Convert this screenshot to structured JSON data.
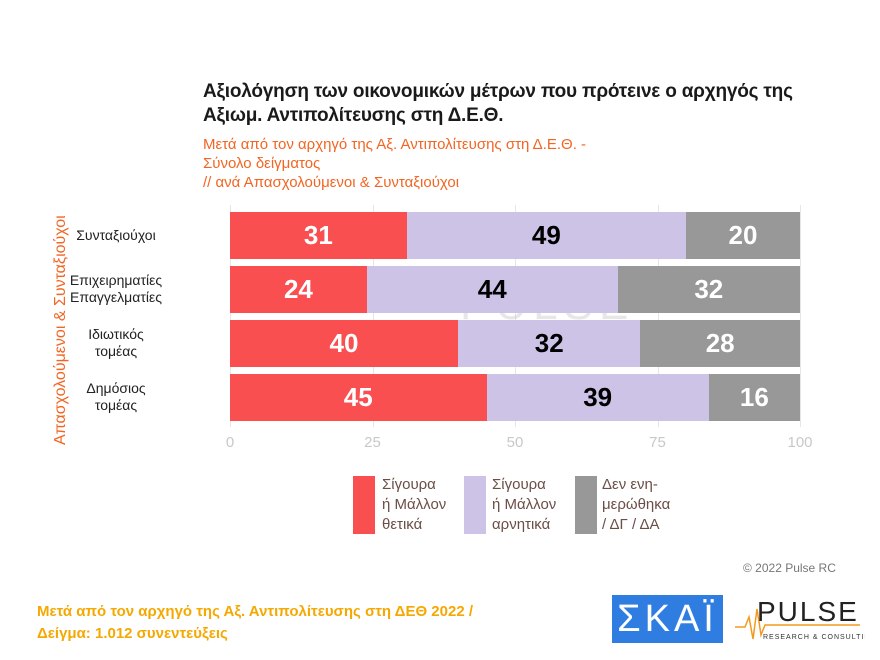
{
  "chart_data": {
    "type": "bar",
    "orientation": "horizontal",
    "stacked": true,
    "title": "Αξιολόγηση των οικονομικών μέτρων που πρότεινε ο αρχηγός της Αξιωμ. Αντιπολίτευσης στη Δ.Ε.Θ.",
    "subtitle": "Μετά από τον αρχηγό της Αξ. Αντιπολίτευσης στη Δ.Ε.Θ. -\nΣύνολο δείγματος\n // ανά Απασχολούμενοι & Συνταξιούχοι",
    "ylabel": "Απασχολούμενοι & Συνταξιούχοι",
    "xlabel": "",
    "categories": [
      "Συνταξιούχοι",
      "Επιχειρηματίες\nΕπαγγελματίες",
      "Ιδιωτικός\nτομέας",
      "Δημόσιος\nτομέας"
    ],
    "series": [
      {
        "name": "Σίγουρα\nή Μάλλον\nθετικά",
        "color": "#f94f51",
        "label_color": "#ffffff",
        "values": [
          31,
          24,
          40,
          45
        ]
      },
      {
        "name": "Σίγουρα\nή Μάλλον\nαρνητικά",
        "color": "#cdc3e7",
        "label_color": "#000000",
        "values": [
          49,
          44,
          32,
          39
        ]
      },
      {
        "name": "Δεν ενη-\nμερώθηκα\n/ ΔΓ / ΔΑ",
        "color": "#989898",
        "label_color": "#ffffff",
        "values": [
          20,
          32,
          28,
          16
        ]
      }
    ],
    "xlim": [
      0,
      100
    ],
    "xticks": [
      "0",
      "25",
      "50",
      "75",
      "100"
    ],
    "grid": true,
    "legend_position": "bottom"
  },
  "copyright": "© 2022 Pulse RC",
  "footer": "Μετά από τον αρχηγό της Αξ. Αντιπολίτευσης στη ΔΕΘ  2022  /\nΔείγμα:  1.012 συνεντεύξεις",
  "logos": {
    "skai": "ΣΚΑΪ",
    "pulse": "PULSE",
    "pulse_tagline": "RESEARCH & CONSULTING"
  }
}
